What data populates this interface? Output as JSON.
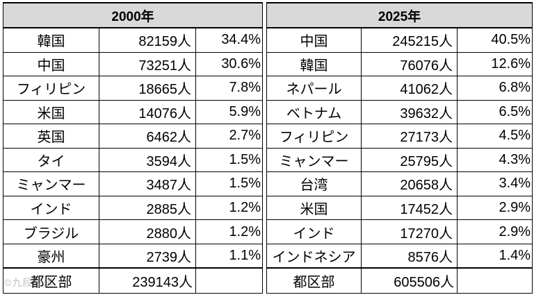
{
  "left": {
    "header": "2000年",
    "rows": [
      {
        "name": "韓国",
        "count": "82159人",
        "pct": "34.4%"
      },
      {
        "name": "中国",
        "count": "73251人",
        "pct": "30.6%"
      },
      {
        "name": "フィリピン",
        "count": "18665人",
        "pct": "7.8%"
      },
      {
        "name": "米国",
        "count": "14076人",
        "pct": "5.9%"
      },
      {
        "name": "英国",
        "count": "6462人",
        "pct": "2.7%"
      },
      {
        "name": "タイ",
        "count": "3594人",
        "pct": "1.5%"
      },
      {
        "name": "ミャンマー",
        "count": "3487人",
        "pct": "1.5%"
      },
      {
        "name": "インド",
        "count": "2885人",
        "pct": "1.2%"
      },
      {
        "name": "ブラジル",
        "count": "2880人",
        "pct": "1.2%"
      },
      {
        "name": "豪州",
        "count": "2739人",
        "pct": "1.1%"
      }
    ],
    "total": {
      "label": "都区部",
      "count": "239143人"
    }
  },
  "right": {
    "header": "2025年",
    "rows": [
      {
        "name": "中国",
        "count": "245215人",
        "pct": "40.5%"
      },
      {
        "name": "韓国",
        "count": "76076人",
        "pct": "12.6%"
      },
      {
        "name": "ネパール",
        "count": "41062人",
        "pct": "6.8%"
      },
      {
        "name": "ベトナム",
        "count": "39632人",
        "pct": "6.5%"
      },
      {
        "name": "フィリピン",
        "count": "27173人",
        "pct": "4.5%"
      },
      {
        "name": "ミャンマー",
        "count": "25795人",
        "pct": "4.3%"
      },
      {
        "name": "台湾",
        "count": "20658人",
        "pct": "3.4%"
      },
      {
        "name": "米国",
        "count": "17452人",
        "pct": "2.9%"
      },
      {
        "name": "インド",
        "count": "17270人",
        "pct": "2.9%"
      },
      {
        "name": "インドネシア",
        "count": "8576人",
        "pct": "1.4%"
      }
    ],
    "total": {
      "label": "都区部",
      "count": "605506人"
    }
  },
  "watermark": "©九段经济"
}
